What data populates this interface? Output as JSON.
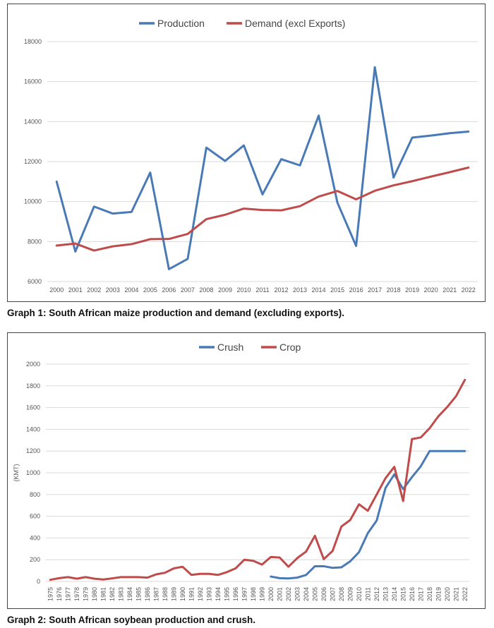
{
  "chart_data": [
    {
      "type": "line",
      "title": "",
      "xlabel": "",
      "ylabel": "",
      "caption": "Graph 1:  South African maize production and demand (excluding exports).",
      "legend_position": "top-center",
      "grid": true,
      "ylim": [
        6000,
        18000
      ],
      "yticks": [
        6000,
        8000,
        10000,
        12000,
        14000,
        16000,
        18000
      ],
      "x": [
        "2000",
        "2001",
        "2002",
        "2003",
        "2004",
        "2005",
        "2006",
        "2007",
        "2008",
        "2009",
        "2010",
        "2011",
        "2012",
        "2013",
        "2014",
        "2015",
        "2016",
        "2017",
        "2018",
        "2019",
        "2020",
        "2021",
        "2022"
      ],
      "series": [
        {
          "name": "Production",
          "color": "#4a7ab5",
          "values": [
            11000,
            7500,
            9750,
            9400,
            9480,
            11450,
            6620,
            7130,
            12700,
            12030,
            12810,
            10360,
            12120,
            11810,
            14300,
            9950,
            7780,
            16720,
            11200,
            13200,
            13300,
            13420,
            13500
          ]
        },
        {
          "name": "Demand (excl Exports)",
          "color": "#bf4b4b",
          "values": [
            7800,
            7900,
            7550,
            7760,
            7870,
            8120,
            8130,
            8380,
            9120,
            9340,
            9650,
            9580,
            9560,
            9770,
            10250,
            10530,
            10110,
            10540,
            10810,
            11020,
            11250,
            11470,
            11700
          ]
        }
      ]
    },
    {
      "type": "line",
      "title": "",
      "xlabel": "",
      "ylabel": "(KMT)",
      "caption": "Graph 2: South African soybean production and crush.",
      "legend_position": "top-center",
      "grid": true,
      "ylim": [
        0,
        2000
      ],
      "yticks": [
        0,
        200,
        400,
        600,
        800,
        1000,
        1200,
        1400,
        1600,
        1800,
        2000
      ],
      "x": [
        "1975",
        "1976",
        "1977",
        "1978",
        "1979",
        "1980",
        "1981",
        "1982",
        "1983",
        "1984",
        "1985",
        "1986",
        "1987",
        "1988",
        "1989",
        "1990",
        "1991",
        "1992",
        "1993",
        "1994",
        "1995",
        "1996",
        "1997",
        "1998",
        "1999",
        "2000",
        "2001",
        "2002",
        "2003",
        "2004",
        "2005",
        "2006",
        "2007",
        "2008",
        "2009",
        "2010",
        "2011",
        "2012",
        "2013",
        "2014",
        "2015",
        "2016",
        "2017",
        "2018",
        "2019",
        "2020",
        "2021",
        "2022"
      ],
      "series": [
        {
          "name": "Crush",
          "color": "#4a7ab5",
          "values": [
            null,
            null,
            null,
            null,
            null,
            null,
            null,
            null,
            null,
            null,
            null,
            null,
            null,
            null,
            null,
            null,
            null,
            null,
            null,
            null,
            null,
            null,
            null,
            null,
            null,
            45,
            30,
            28,
            35,
            60,
            140,
            140,
            125,
            130,
            185,
            270,
            445,
            560,
            860,
            985,
            850,
            960,
            1060,
            1200,
            1200,
            1200,
            1200,
            1200
          ]
        },
        {
          "name": "Crop",
          "color": "#bf4b4b",
          "values": [
            15,
            30,
            40,
            25,
            40,
            25,
            18,
            28,
            40,
            40,
            40,
            35,
            65,
            80,
            120,
            135,
            60,
            70,
            70,
            60,
            85,
            120,
            200,
            190,
            155,
            225,
            220,
            135,
            215,
            275,
            420,
            205,
            280,
            505,
            565,
            710,
            650,
            800,
            950,
            1055,
            740,
            1310,
            1325,
            1410,
            1520,
            1605,
            1705,
            1855
          ]
        }
      ]
    }
  ]
}
